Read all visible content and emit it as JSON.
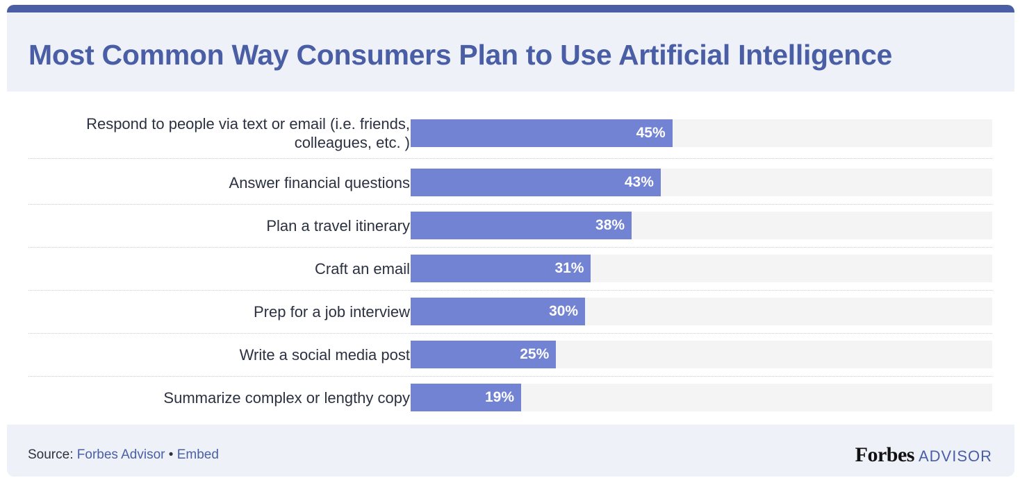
{
  "header": {
    "title": "Most Common Way Consumers Plan to Use Artificial Intelligence"
  },
  "footer": {
    "source_label": "Source: ",
    "source_link": "Forbes Advisor",
    "separator": " • ",
    "embed_link": "Embed",
    "brand_word": "Forbes",
    "brand_suffix": "ADVISOR"
  },
  "colors": {
    "bar": "#7283d4",
    "track": "#f4f4f4",
    "title": "#4a5ea6",
    "header_bg": "#eef2f8"
  },
  "chart_data": {
    "type": "bar",
    "orientation": "horizontal",
    "title": "Most Common Way Consumers Plan to Use Artificial Intelligence",
    "categories": [
      "Respond to people via text or email (i.e. friends, colleagues, etc. )",
      "Answer financial questions",
      "Plan a travel itinerary",
      "Craft an email",
      "Prep for a job interview",
      "Write a social media post",
      "Summarize complex or lengthy copy"
    ],
    "values": [
      45,
      43,
      38,
      31,
      30,
      25,
      19
    ],
    "value_labels": [
      "45%",
      "43%",
      "38%",
      "31%",
      "30%",
      "25%",
      "19%"
    ],
    "xlim": [
      0,
      100
    ],
    "grid": false,
    "legend": "none"
  }
}
